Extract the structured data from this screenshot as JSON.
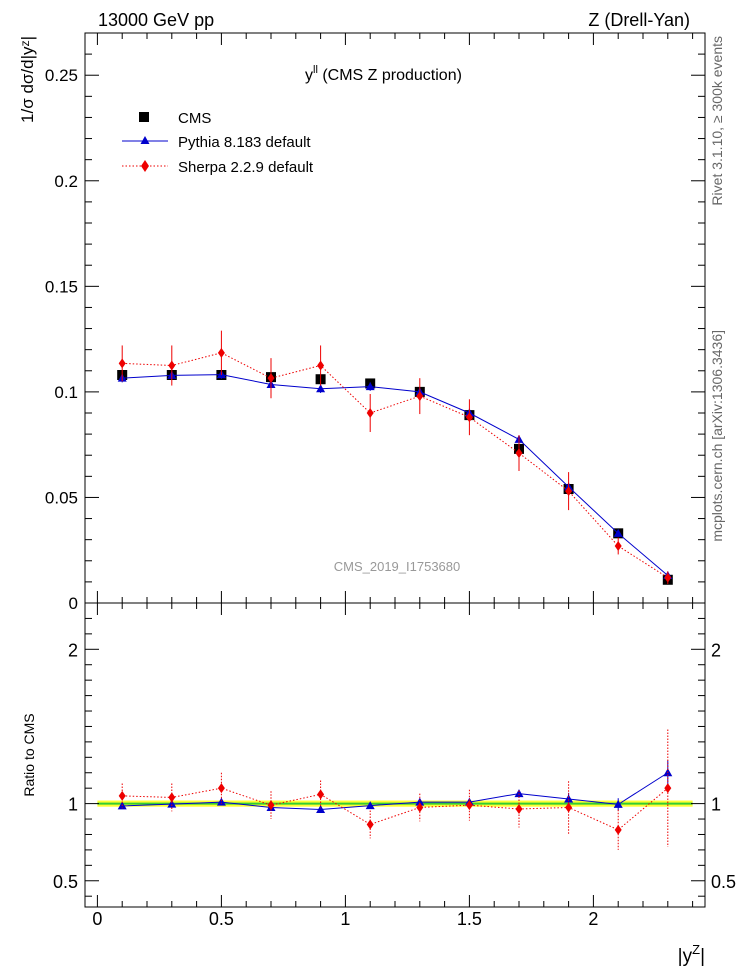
{
  "header": {
    "left": "13000 GeV pp",
    "right": "Z (Drell-Yan)"
  },
  "side_labels": {
    "rivet": "Rivet 3.1.10, ≥ 300k events",
    "mcplots": "mcplots.cern.ch [arXiv:1306.3436]"
  },
  "chart_data": {
    "type": "line",
    "title_main": "y",
    "title_sup": "ll",
    "title_rest": " (CMS Z production)",
    "analysis_label": "CMS_2019_I1753680",
    "xlabel_main": "|y",
    "xlabel_sup": "Z",
    "xlabel_end": "|",
    "ylabel": "1/σ dσ/d|yᶻ|",
    "ratio_ylabel": "Ratio to CMS",
    "xlim": [
      -0.05,
      2.45
    ],
    "ylim": [
      0,
      0.27
    ],
    "ratio_ylim": [
      0.33,
      2.3
    ],
    "x_ticks": [
      0,
      0.5,
      1,
      1.5,
      2
    ],
    "x_tick_labels": [
      "0",
      "0.5",
      "1",
      "1.5",
      "2"
    ],
    "y_ticks": [
      0,
      0.05,
      0.1,
      0.15,
      0.2,
      0.25
    ],
    "y_tick_labels": [
      "0",
      "0.05",
      "0.1",
      "0.15",
      "0.2",
      "0.25"
    ],
    "ratio_ticks": [
      0.5,
      1,
      2
    ],
    "ratio_tick_labels": [
      "0.5",
      "1",
      "2"
    ],
    "x": [
      0.1,
      0.3,
      0.5,
      0.7,
      0.9,
      1.1,
      1.3,
      1.5,
      1.7,
      1.9,
      2.1,
      2.3
    ],
    "series": [
      {
        "name": "CMS",
        "color": "#000000",
        "marker": "square",
        "values": [
          0.108,
          0.108,
          0.108,
          0.107,
          0.106,
          0.104,
          0.1,
          0.089,
          0.073,
          0.054,
          0.033,
          0.011
        ],
        "ratio": [
          1,
          1,
          1,
          1,
          1,
          1,
          1,
          1,
          1,
          1,
          1,
          1
        ],
        "err": [
          0.002,
          0.002,
          0.002,
          0.002,
          0.002,
          0.002,
          0.002,
          0.002,
          0.002,
          0.002,
          0.001,
          0.001
        ],
        "ratio_band": 0.02
      },
      {
        "name": "Pythia 8.183 default",
        "color": "#0000cc",
        "marker": "triangle",
        "linestyle": "solid",
        "values": [
          0.1065,
          0.1078,
          0.1082,
          0.1035,
          0.1015,
          0.1025,
          0.1,
          0.09,
          0.0775,
          0.055,
          0.033,
          0.013
        ],
        "err": [
          0.002,
          0.002,
          0.002,
          0.002,
          0.002,
          0.002,
          0.002,
          0.002,
          0.002,
          0.002,
          0.001,
          0.001
        ],
        "ratio": [
          0.985,
          0.997,
          1.01,
          0.975,
          0.962,
          0.987,
          1.01,
          1.01,
          1.065,
          1.03,
          0.995,
          1.2
        ],
        "ratio_err": [
          0.02,
          0.02,
          0.02,
          0.02,
          0.02,
          0.02,
          0.02,
          0.02,
          0.02,
          0.04,
          0.04,
          0.08
        ]
      },
      {
        "name": "Sherpa 2.2.9 default",
        "color": "#ee0000",
        "marker": "diamond",
        "linestyle": "dotted",
        "values": [
          0.1135,
          0.1125,
          0.1185,
          0.1065,
          0.1125,
          0.09,
          0.098,
          0.088,
          0.071,
          0.053,
          0.027,
          0.012
        ],
        "err": [
          0.0085,
          0.0095,
          0.0105,
          0.0095,
          0.0095,
          0.009,
          0.0085,
          0.0085,
          0.0085,
          0.009,
          0.004,
          0.003
        ],
        "ratio": [
          1.05,
          1.04,
          1.1,
          0.99,
          1.06,
          0.865,
          0.975,
          0.99,
          0.965,
          0.975,
          0.83,
          1.1
        ],
        "ratio_err": [
          0.08,
          0.09,
          0.1,
          0.09,
          0.09,
          0.09,
          0.09,
          0.1,
          0.12,
          0.17,
          0.13,
          0.38
        ]
      }
    ]
  }
}
